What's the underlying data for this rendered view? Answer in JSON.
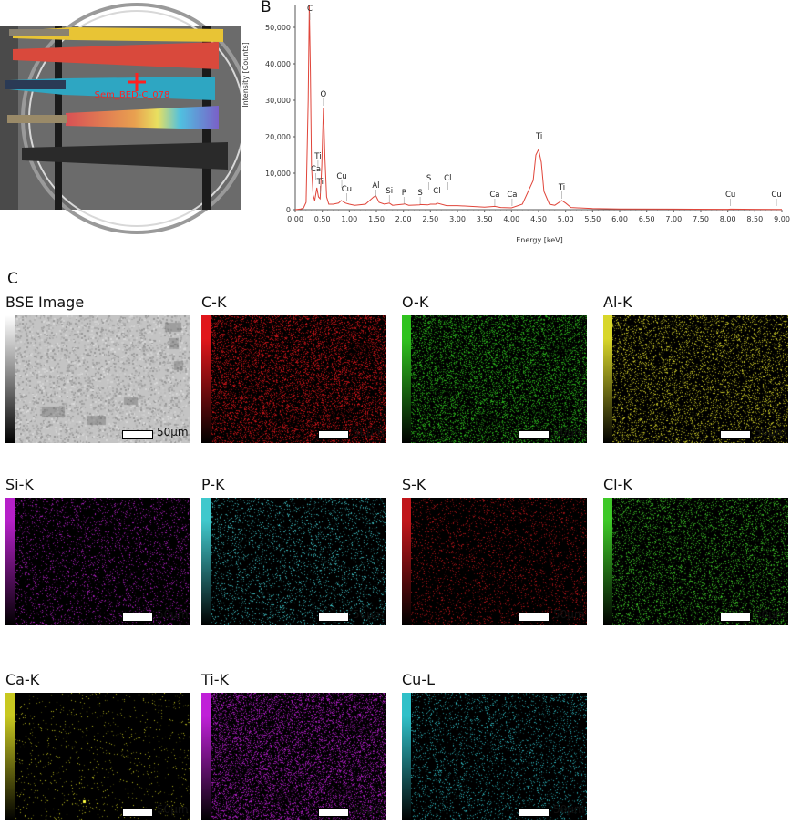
{
  "panels": {
    "A": "A",
    "B": "B",
    "C": "C"
  },
  "photo": {
    "marker_label": "Sem_BED-C_078",
    "marker_color": "#ff2020"
  },
  "chart_data": {
    "type": "line",
    "xlabel": "Energy [keV]",
    "ylabel": "Intensity [Counts]",
    "xlim": [
      0,
      9
    ],
    "ylim": [
      0,
      56000
    ],
    "x_ticks": [
      "0.00",
      "0.50",
      "1.00",
      "1.50",
      "2.00",
      "2.50",
      "3.00",
      "3.50",
      "4.00",
      "4.50",
      "5.00",
      "5.50",
      "6.00",
      "6.50",
      "7.00",
      "7.50",
      "8.00",
      "8.50",
      "9.00"
    ],
    "y_ticks": [
      "0",
      "10,000",
      "20,000",
      "30,000",
      "40,000",
      "50,000"
    ],
    "line_color": "#e0453a",
    "series": [
      {
        "x": [
          0.0,
          0.1,
          0.15,
          0.2,
          0.24,
          0.26,
          0.28,
          0.3,
          0.33,
          0.36,
          0.4,
          0.43,
          0.46,
          0.49,
          0.52,
          0.55,
          0.58,
          0.62,
          0.7,
          0.8,
          0.85,
          0.93,
          1.0,
          1.1,
          1.3,
          1.45,
          1.49,
          1.55,
          1.65,
          1.74,
          1.8,
          2.0,
          2.02,
          2.1,
          2.3,
          2.31,
          2.45,
          2.5,
          2.6,
          2.62,
          2.8,
          3.0,
          3.5,
          3.69,
          3.8,
          4.0,
          4.2,
          4.4,
          4.45,
          4.5,
          4.55,
          4.6,
          4.7,
          4.8,
          4.93,
          5.0,
          5.1,
          5.5,
          6.0,
          7.0,
          8.0,
          8.05,
          8.5,
          9.0
        ],
        "y": [
          0,
          200,
          400,
          2000,
          30000,
          56000,
          38000,
          12000,
          4000,
          2500,
          6000,
          3500,
          3000,
          12000,
          28000,
          14000,
          3500,
          1500,
          1500,
          1800,
          2500,
          1800,
          1500,
          1200,
          1500,
          3500,
          3800,
          2000,
          1500,
          1800,
          1200,
          1500,
          1600,
          1200,
          1300,
          1400,
          1300,
          1500,
          1500,
          1800,
          1100,
          1100,
          700,
          900,
          600,
          500,
          1500,
          8000,
          15000,
          16500,
          13000,
          5000,
          1500,
          1200,
          2500,
          1800,
          600,
          300,
          200,
          150,
          100,
          150,
          100,
          80
        ]
      }
    ],
    "peak_labels": [
      {
        "text": "C",
        "x": 0.27,
        "y": 54500
      },
      {
        "text": "Ti",
        "x": 0.42,
        "y": 14000
      },
      {
        "text": "Ca",
        "x": 0.38,
        "y": 10500
      },
      {
        "text": "Ti",
        "x": 0.46,
        "y": 7000
      },
      {
        "text": "O",
        "x": 0.52,
        "y": 31000
      },
      {
        "text": "Cu",
        "x": 0.86,
        "y": 8500
      },
      {
        "text": "Cu",
        "x": 0.95,
        "y": 5000
      },
      {
        "text": "Al",
        "x": 1.49,
        "y": 6000
      },
      {
        "text": "Si",
        "x": 1.74,
        "y": 4500
      },
      {
        "text": "P",
        "x": 2.01,
        "y": 4000
      },
      {
        "text": "S",
        "x": 2.31,
        "y": 4000
      },
      {
        "text": "S",
        "x": 2.47,
        "y": 8000
      },
      {
        "text": "Cl",
        "x": 2.62,
        "y": 4500
      },
      {
        "text": "Cl",
        "x": 2.82,
        "y": 8000
      },
      {
        "text": "Ca",
        "x": 3.69,
        "y": 3500
      },
      {
        "text": "Ca",
        "x": 4.01,
        "y": 3500
      },
      {
        "text": "Ti",
        "x": 4.51,
        "y": 19500
      },
      {
        "text": "Ti",
        "x": 4.93,
        "y": 5500
      },
      {
        "text": "Cu",
        "x": 8.05,
        "y": 3500
      },
      {
        "text": "Cu",
        "x": 8.9,
        "y": 3500
      }
    ]
  },
  "maps": [
    {
      "title": "BSE Image",
      "scale": "50µm",
      "color": "#cfcfcf",
      "kind": "bse"
    },
    {
      "title": "C-K",
      "scale": "50µm",
      "color": "#e0161b",
      "kind": "dense"
    },
    {
      "title": "O-K",
      "scale": "50µm",
      "color": "#2fc21f",
      "kind": "dense"
    },
    {
      "title": "Al-K",
      "scale": "50µm",
      "color": "#d8d62a",
      "kind": "medium"
    },
    {
      "title": "Si-K",
      "scale": "50µm",
      "color": "#b520c8",
      "kind": "sparse"
    },
    {
      "title": "P-K",
      "scale": "50µm",
      "color": "#40c8cc",
      "kind": "sparse"
    },
    {
      "title": "S-K",
      "scale": "50µm",
      "color": "#c0161b",
      "kind": "sparse"
    },
    {
      "title": "Cl-K",
      "scale": "50µm",
      "color": "#3ec828",
      "kind": "medium"
    },
    {
      "title": "Ca-K",
      "scale": "50µm",
      "color": "#c8c820",
      "kind": "veryspare"
    },
    {
      "title": "Ti-K",
      "scale": "50µm",
      "color": "#c020d8",
      "kind": "dense"
    },
    {
      "title": "Cu-L",
      "scale": "50µm",
      "color": "#30c0c8",
      "kind": "sparse"
    }
  ]
}
